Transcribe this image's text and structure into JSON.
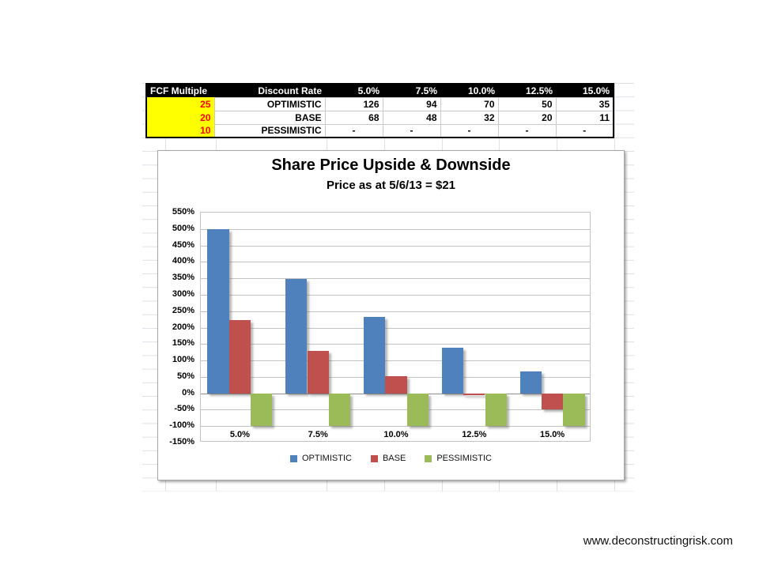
{
  "table": {
    "headers": [
      "FCF Multiple",
      "Discount Rate",
      "5.0%",
      "7.5%",
      "10.0%",
      "12.5%",
      "15.0%"
    ],
    "rows": [
      {
        "fcf": "25",
        "scenario": "OPTIMISTIC",
        "values": [
          "126",
          "94",
          "70",
          "50",
          "35"
        ]
      },
      {
        "fcf": "20",
        "scenario": "BASE",
        "values": [
          "68",
          "48",
          "32",
          "20",
          "11"
        ]
      },
      {
        "fcf": "10",
        "scenario": "PESSIMISTIC",
        "values": [
          "-",
          "-",
          "-",
          "-",
          "-"
        ]
      }
    ],
    "colors": {
      "header_bg": "#000000",
      "header_text": "#FFFFFF",
      "fcf_bg": "#FFFF00",
      "fcf_text": "#FF0000"
    }
  },
  "chart_data": {
    "type": "bar",
    "title": "Share Price Upside & Downside",
    "subtitle": "Price as at 5/6/13 = $21",
    "categories": [
      "5.0%",
      "7.5%",
      "10.0%",
      "12.5%",
      "15.0%"
    ],
    "series": [
      {
        "name": "OPTIMISTIC",
        "color": "#4F81BD",
        "values": [
          500,
          348,
          233,
          138,
          67
        ]
      },
      {
        "name": "BASE",
        "color": "#C0504D",
        "values": [
          224,
          129,
          52,
          -5,
          -48
        ]
      },
      {
        "name": "PESSIMISTIC",
        "color": "#9BBB59",
        "values": [
          -100,
          -100,
          -100,
          -100,
          -100
        ]
      }
    ],
    "ylim": [
      -150,
      550
    ],
    "ytick_step": 50,
    "ytick_labels": [
      "550%",
      "500%",
      "450%",
      "400%",
      "350%",
      "300%",
      "250%",
      "200%",
      "150%",
      "100%",
      "50%",
      "0%",
      "-50%",
      "-100%",
      "-150%"
    ],
    "xlabel": "",
    "ylabel": "",
    "grid": true,
    "legend_position": "bottom"
  },
  "footer": {
    "url": "www.deconstructingrisk.com"
  }
}
